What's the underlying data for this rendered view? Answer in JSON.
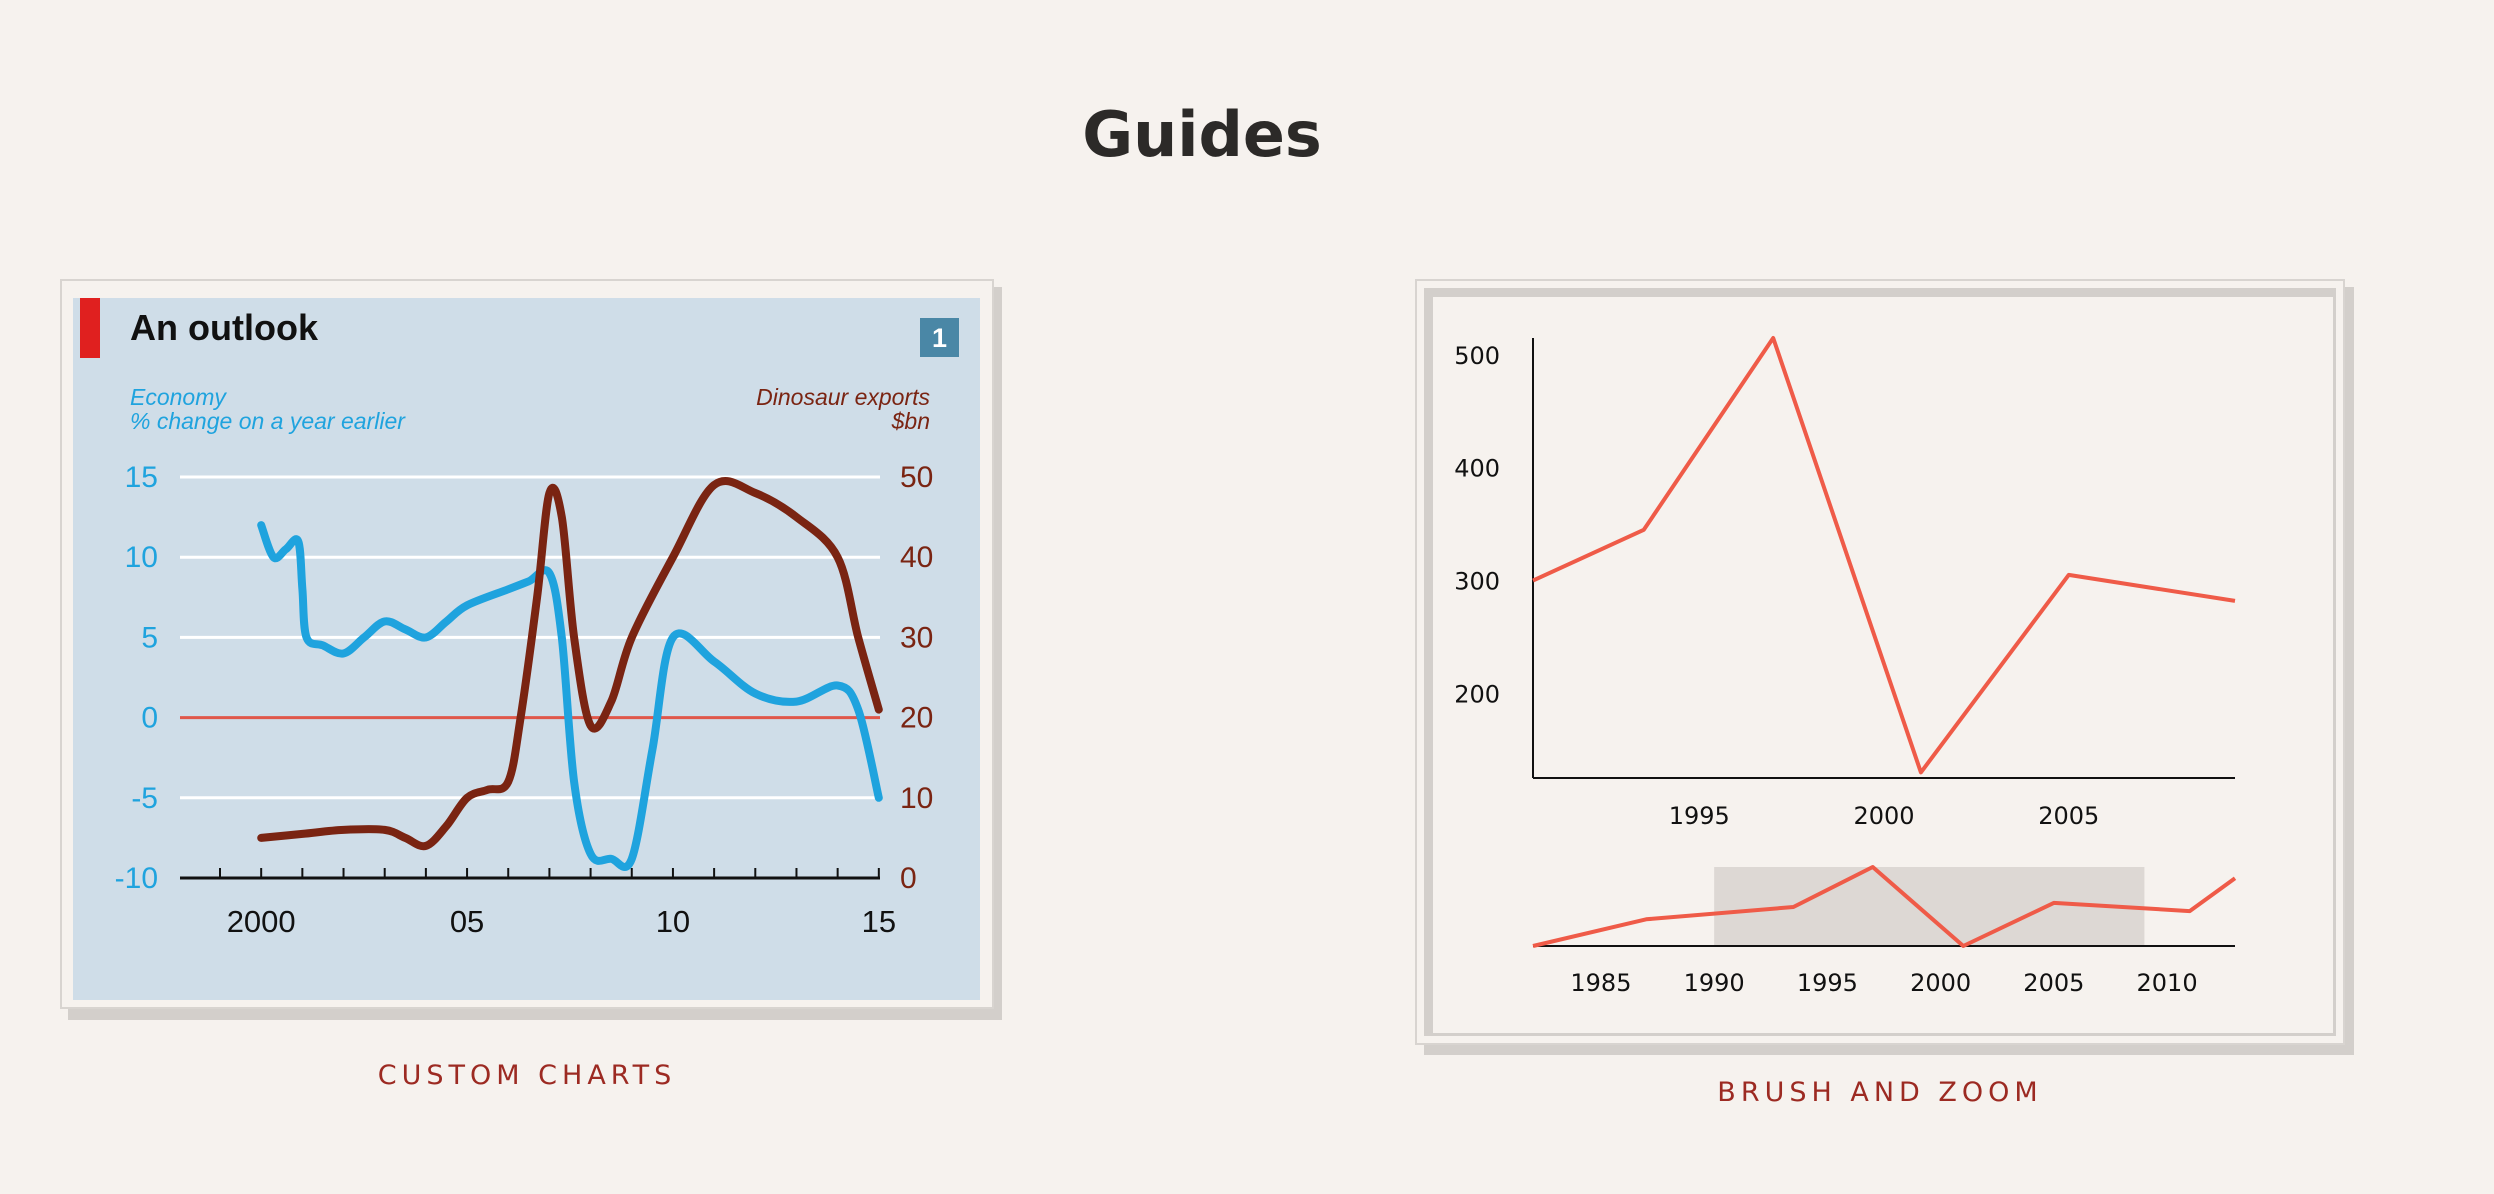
{
  "page": {
    "title": "Guides"
  },
  "left_card": {
    "caption": "CUSTOM CHARTS",
    "title": "An outlook",
    "badge": "1",
    "colors": {
      "panel": "#cfdde8",
      "accent": "#e0201f",
      "badge": "#4a87a6",
      "economy": "#1fa3de",
      "dino": "#7a2412",
      "zero": "#e0574a"
    }
  },
  "right_card": {
    "caption": "BRUSH AND ZOOM",
    "colors": {
      "line": "#ef5b48",
      "brush": "#ddd8d4"
    }
  },
  "chart_data": [
    {
      "type": "line",
      "title": "An outlook",
      "left_label": [
        "Economy",
        "% change on a year earlier"
      ],
      "right_label": [
        "Dinosaur exports",
        "$bn"
      ],
      "x_ticks": [
        2000,
        2005,
        2010,
        2015
      ],
      "x_tick_labels": [
        "2000",
        "05",
        "10",
        "15"
      ],
      "xlim": [
        1999,
        2016
      ],
      "ylim_left": [
        -10,
        15
      ],
      "ylim_right": [
        0,
        50
      ],
      "y_ticks_left": [
        15,
        10,
        5,
        0,
        -5,
        -10
      ],
      "y_ticks_right": [
        50,
        40,
        30,
        20,
        10,
        0
      ],
      "grid": true,
      "series": [
        {
          "axis": "left",
          "x": [
            2000,
            2000.3,
            2000.6,
            2000.9,
            2001.0,
            2001.1,
            2001.5,
            2002,
            2002.5,
            2003,
            2003.5,
            2004,
            2004.5,
            2005,
            2006,
            2006.5,
            2007,
            2007.3,
            2007.6,
            2008,
            2008.5,
            2009,
            2009.5,
            2010,
            2011,
            2012,
            2013,
            2014,
            2014.5,
            2015
          ],
          "values": [
            12,
            10,
            10.5,
            11,
            8,
            5,
            4.5,
            4,
            5,
            6,
            5.5,
            5,
            6,
            7,
            8,
            8.5,
            9,
            5,
            -4,
            -8.5,
            -8.8,
            -8.8,
            -2,
            5,
            3.5,
            1.5,
            1,
            2,
            0.5,
            -5
          ]
        },
        {
          "axis": "right",
          "x": [
            2000,
            2001,
            2002,
            2003,
            2003.5,
            2004,
            2004.5,
            2005,
            2005.5,
            2006,
            2006.3,
            2006.7,
            2007,
            2007.3,
            2007.6,
            2008,
            2008.5,
            2009,
            2010,
            2011,
            2012,
            2013,
            2014,
            2014.5,
            2015
          ],
          "values": [
            5,
            5.5,
            6,
            6,
            5,
            4,
            6.5,
            10,
            11,
            12,
            20,
            35,
            48,
            45,
            30,
            19,
            22,
            30,
            40,
            49,
            48,
            45,
            40,
            30,
            21
          ]
        }
      ],
      "zero_line_left": 0
    },
    {
      "type": "line",
      "x_ticks": [
        1995,
        2000,
        2005
      ],
      "y_ticks": [
        500,
        400,
        300,
        200
      ],
      "xlim": [
        1990.5,
        2009.5
      ],
      "ylim": [
        125,
        515
      ],
      "series": [
        {
          "x": [
            1990.5,
            1993.5,
            1997,
            2001,
            2005,
            2009.5
          ],
          "values": [
            300,
            345,
            515,
            130,
            305,
            282
          ]
        }
      ]
    },
    {
      "type": "area",
      "role": "context-brush",
      "x_ticks": [
        1985,
        1990,
        1995,
        2000,
        2005,
        2010
      ],
      "xlim": [
        1982,
        2013
      ],
      "ylim": [
        130,
        515
      ],
      "brush_extent": [
        1990,
        2009
      ],
      "series": [
        {
          "x": [
            1982,
            1987,
            1993.5,
            1997,
            2001,
            2005,
            2011,
            2013
          ],
          "values": [
            130,
            260,
            320,
            515,
            130,
            340,
            300,
            460
          ]
        }
      ]
    }
  ]
}
